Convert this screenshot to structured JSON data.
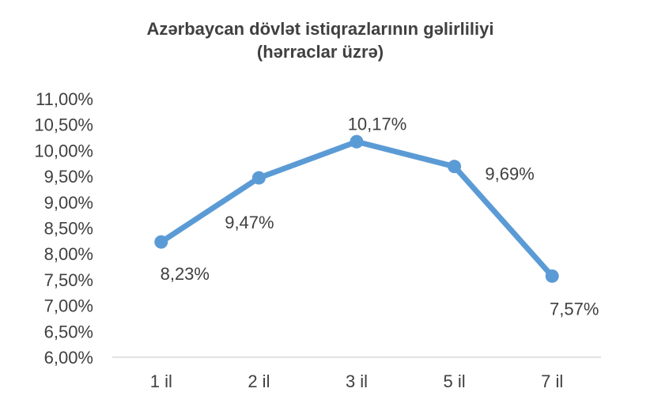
{
  "chart_data": {
    "type": "line",
    "title": "Azərbaycan dövlət istiqrazlarının gəlirliliyi",
    "subtitle": "(hərraclar üzrə)",
    "categories": [
      "1 il",
      "2 il",
      "3 il",
      "5 il",
      "7 il"
    ],
    "series": [
      {
        "values": [
          8.23,
          9.47,
          10.17,
          9.69,
          7.57
        ],
        "labels": [
          "8,23%",
          "9,47%",
          "10,17%",
          "9,69%",
          "7,57%"
        ]
      }
    ],
    "y_ticks": [
      6.0,
      6.5,
      7.0,
      7.5,
      8.0,
      8.5,
      9.0,
      9.5,
      10.0,
      10.5,
      11.0
    ],
    "y_tick_labels": [
      "6,00%",
      "6,50%",
      "7,00%",
      "7,50%",
      "8,00%",
      "8,50%",
      "9,00%",
      "9,50%",
      "10,00%",
      "10,50%",
      "11,00%"
    ],
    "ylim": [
      6.0,
      11.0
    ],
    "grid": false,
    "legend": "none",
    "colors": {
      "line": "#5b9bd5",
      "text": "#404040",
      "axis": "#d9d9d9"
    }
  }
}
